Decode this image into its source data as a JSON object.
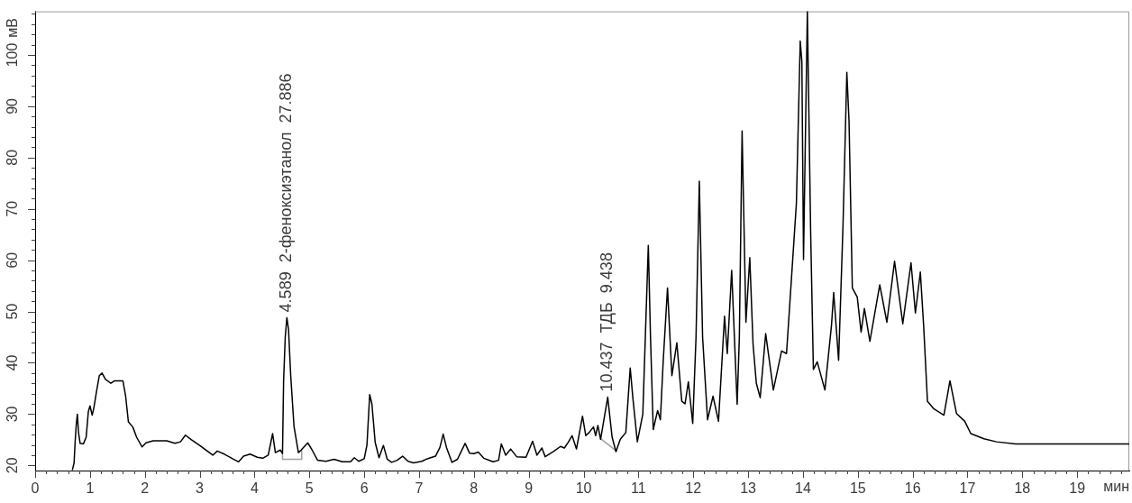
{
  "chart_data": {
    "type": "line",
    "xlabel": "мин",
    "ylabel": "мВ",
    "marker": "none",
    "xlim": [
      0,
      19.95
    ],
    "ylim": [
      19,
      108.5
    ],
    "xticks": [
      0,
      {
        "value": 0.2,
        "label": null
      },
      {
        "value": 0.4,
        "label": null
      },
      {
        "value": 0.6,
        "label": null
      },
      {
        "value": 0.8,
        "label": null
      },
      1,
      {
        "value": 1.2,
        "label": null
      },
      {
        "value": 1.4,
        "label": null
      },
      {
        "value": 1.6,
        "label": null
      },
      {
        "value": 1.8,
        "label": null
      },
      2,
      {
        "value": 2.2,
        "label": null
      },
      {
        "value": 2.4,
        "label": null
      },
      {
        "value": 2.6,
        "label": null
      },
      {
        "value": 2.8,
        "label": null
      },
      3,
      {
        "value": 3.2,
        "label": null
      },
      {
        "value": 3.4,
        "label": null
      },
      {
        "value": 3.6,
        "label": null
      },
      {
        "value": 3.8,
        "label": null
      },
      4,
      {
        "value": 4.2,
        "label": null
      },
      {
        "value": 4.4,
        "label": null
      },
      {
        "value": 4.6,
        "label": null
      },
      {
        "value": 4.8,
        "label": null
      },
      5,
      {
        "value": 5.2,
        "label": null
      },
      {
        "value": 5.4,
        "label": null
      },
      {
        "value": 5.6,
        "label": null
      },
      {
        "value": 5.8,
        "label": null
      },
      6,
      {
        "value": 6.2,
        "label": null
      },
      {
        "value": 6.4,
        "label": null
      },
      {
        "value": 6.6,
        "label": null
      },
      {
        "value": 6.8,
        "label": null
      },
      7,
      {
        "value": 7.2,
        "label": null
      },
      {
        "value": 7.4,
        "label": null
      },
      {
        "value": 7.6,
        "label": null
      },
      {
        "value": 7.8,
        "label": null
      },
      8,
      {
        "value": 8.2,
        "label": null
      },
      {
        "value": 8.4,
        "label": null
      },
      {
        "value": 8.6,
        "label": null
      },
      {
        "value": 8.8,
        "label": null
      },
      9,
      {
        "value": 9.2,
        "label": null
      },
      {
        "value": 9.4,
        "label": null
      },
      {
        "value": 9.6,
        "label": null
      },
      {
        "value": 9.8,
        "label": null
      },
      10,
      {
        "value": 10.2,
        "label": null
      },
      {
        "value": 10.4,
        "label": null
      },
      {
        "value": 10.6,
        "label": null
      },
      {
        "value": 10.8,
        "label": null
      },
      11,
      {
        "value": 11.2,
        "label": null
      },
      {
        "value": 11.4,
        "label": null
      },
      {
        "value": 11.6,
        "label": null
      },
      {
        "value": 11.8,
        "label": null
      },
      12,
      {
        "value": 12.2,
        "label": null
      },
      {
        "value": 12.4,
        "label": null
      },
      {
        "value": 12.6,
        "label": null
      },
      {
        "value": 12.8,
        "label": null
      },
      13,
      {
        "value": 13.2,
        "label": null
      },
      {
        "value": 13.4,
        "label": null
      },
      {
        "value": 13.6,
        "label": null
      },
      {
        "value": 13.8,
        "label": null
      },
      14,
      {
        "value": 14.2,
        "label": null
      },
      {
        "value": 14.4,
        "label": null
      },
      {
        "value": 14.6,
        "label": null
      },
      {
        "value": 14.8,
        "label": null
      },
      15,
      {
        "value": 15.2,
        "label": null
      },
      {
        "value": 15.4,
        "label": null
      },
      {
        "value": 15.6,
        "label": null
      },
      {
        "value": 15.8,
        "label": null
      },
      16,
      {
        "value": 16.2,
        "label": null
      },
      {
        "value": 16.4,
        "label": null
      },
      {
        "value": 16.6,
        "label": null
      },
      {
        "value": 16.8,
        "label": null
      },
      17,
      {
        "value": 17.2,
        "label": null
      },
      {
        "value": 17.4,
        "label": null
      },
      {
        "value": 17.6,
        "label": null
      },
      {
        "value": 17.8,
        "label": null
      },
      18,
      {
        "value": 18.2,
        "label": null
      },
      {
        "value": 18.4,
        "label": null
      },
      {
        "value": 18.6,
        "label": null
      },
      {
        "value": 18.8,
        "label": null
      },
      19,
      {
        "value": 19.2,
        "label": null
      },
      {
        "value": 19.4,
        "label": null
      },
      {
        "value": 19.6,
        "label": null
      },
      {
        "value": 19.8,
        "label": null
      }
    ],
    "yticks": [
      20,
      {
        "value": 22,
        "label": null
      },
      {
        "value": 24,
        "label": null
      },
      {
        "value": 26,
        "label": null
      },
      {
        "value": 28,
        "label": null
      },
      30,
      {
        "value": 32,
        "label": null
      },
      {
        "value": 34,
        "label": null
      },
      {
        "value": 36,
        "label": null
      },
      {
        "value": 38,
        "label": null
      },
      40,
      {
        "value": 42,
        "label": null
      },
      {
        "value": 44,
        "label": null
      },
      {
        "value": 46,
        "label": null
      },
      {
        "value": 48,
        "label": null
      },
      50,
      {
        "value": 52,
        "label": null
      },
      {
        "value": 54,
        "label": null
      },
      {
        "value": 56,
        "label": null
      },
      {
        "value": 58,
        "label": null
      },
      60,
      {
        "value": 62,
        "label": null
      },
      {
        "value": 64,
        "label": null
      },
      {
        "value": 66,
        "label": null
      },
      {
        "value": 68,
        "label": null
      },
      70,
      {
        "value": 72,
        "label": null
      },
      {
        "value": 74,
        "label": null
      },
      {
        "value": 76,
        "label": null
      },
      {
        "value": 78,
        "label": null
      },
      80,
      {
        "value": 82,
        "label": null
      },
      {
        "value": 84,
        "label": null
      },
      {
        "value": 86,
        "label": null
      },
      {
        "value": 88,
        "label": null
      },
      90,
      {
        "value": 92,
        "label": null
      },
      {
        "value": 94,
        "label": null
      },
      {
        "value": 96,
        "label": null
      },
      {
        "value": 98,
        "label": null
      },
      100,
      {
        "value": 102,
        "label": null
      },
      {
        "value": 104,
        "label": null
      },
      {
        "value": 106,
        "label": null
      },
      {
        "value": 108,
        "label": null
      }
    ],
    "series": [
      {
        "color": "#000000",
        "x": [
          0.68,
          0.71,
          0.73,
          0.75,
          0.77,
          0.79,
          0.82,
          0.88,
          0.93,
          0.97,
          1.0,
          1.04,
          1.07,
          1.12,
          1.17,
          1.22,
          1.28,
          1.38,
          1.45,
          1.6,
          1.65,
          1.7,
          1.78,
          1.85,
          1.95,
          2.02,
          2.15,
          2.4,
          2.55,
          2.65,
          2.74,
          2.85,
          3.0,
          3.15,
          3.24,
          3.32,
          3.45,
          3.6,
          3.71,
          3.8,
          3.92,
          4.05,
          4.15,
          4.25,
          4.33,
          4.38,
          4.47,
          4.51,
          4.53,
          4.56,
          4.59,
          4.62,
          4.66,
          4.72,
          4.8,
          4.85,
          4.97,
          5.05,
          5.15,
          5.3,
          5.45,
          5.6,
          5.75,
          5.82,
          5.9,
          6.0,
          6.05,
          6.1,
          6.14,
          6.2,
          6.27,
          6.35,
          6.42,
          6.5,
          6.6,
          6.7,
          6.8,
          6.9,
          7.05,
          7.15,
          7.3,
          7.38,
          7.44,
          7.5,
          7.6,
          7.7,
          7.84,
          7.92,
          8.0,
          8.08,
          8.18,
          8.35,
          8.45,
          8.5,
          8.58,
          8.67,
          8.78,
          8.95,
          9.07,
          9.15,
          9.24,
          9.3,
          9.45,
          9.58,
          9.65,
          9.72,
          9.79,
          9.87,
          9.98,
          10.04,
          10.1,
          10.18,
          10.22,
          10.26,
          10.31,
          10.44,
          10.52,
          10.59,
          10.67,
          10.77,
          10.85,
          10.9,
          10.98,
          11.08,
          11.18,
          11.22,
          11.27,
          11.35,
          11.4,
          11.45,
          11.53,
          11.61,
          11.7,
          11.79,
          11.85,
          11.91,
          11.99,
          12.05,
          12.11,
          12.17,
          12.26,
          12.36,
          12.46,
          12.57,
          12.62,
          12.7,
          12.8,
          12.84,
          12.89,
          12.96,
          13.03,
          13.09,
          13.15,
          13.22,
          13.32,
          13.46,
          13.61,
          13.7,
          13.79,
          13.88,
          13.95,
          13.98,
          14.01,
          14.04,
          14.08,
          14.14,
          14.19,
          14.26,
          14.4,
          14.52,
          14.56,
          14.65,
          14.73,
          14.8,
          14.84,
          14.9,
          14.99,
          15.06,
          15.12,
          15.22,
          15.4,
          15.53,
          15.67,
          15.82,
          15.97,
          16.05,
          16.14,
          16.2,
          16.27,
          16.39,
          16.57,
          16.68,
          16.8,
          16.95,
          17.06,
          17.3,
          17.53,
          17.88,
          19.95
        ],
        "values": [
          19.2,
          20.5,
          24.8,
          28,
          30,
          26.5,
          24.3,
          24.2,
          25.5,
          30.5,
          31.6,
          29.8,
          31.2,
          34.5,
          37.5,
          38,
          36.8,
          36,
          36.5,
          36.5,
          33.5,
          28.5,
          27.5,
          25.5,
          23.6,
          24.4,
          24.8,
          24.8,
          24.3,
          24.6,
          25.9,
          25,
          23.9,
          22.7,
          22,
          22.8,
          22.2,
          21.3,
          20.7,
          21.8,
          22.2,
          21.6,
          21.4,
          22,
          26.2,
          22.5,
          23,
          22.3,
          36.5,
          45,
          48.8,
          46.5,
          37.5,
          27.6,
          22.5,
          23,
          24.4,
          23,
          21,
          20.8,
          21.2,
          20.7,
          20.7,
          21.5,
          20.8,
          21.3,
          24,
          33.8,
          32,
          24.5,
          21.5,
          23.9,
          21.2,
          20.6,
          21,
          21.8,
          20.8,
          20.5,
          20.8,
          21.3,
          21.8,
          23.5,
          26.1,
          23.5,
          20.6,
          21.2,
          24.3,
          22.4,
          22.3,
          22.6,
          21.4,
          20.7,
          21,
          24.2,
          22,
          23.2,
          21.7,
          21.6,
          24.7,
          22,
          23.4,
          21.7,
          22.7,
          23.7,
          23.4,
          24.5,
          25.8,
          23.2,
          29.6,
          25.8,
          26.4,
          27.5,
          25.8,
          27.8,
          25.1,
          33.3,
          25.5,
          22.7,
          25.1,
          26.4,
          39,
          33,
          24.6,
          30,
          62.9,
          45,
          27,
          30.7,
          28.9,
          40,
          54.6,
          37.5,
          43.9,
          32.5,
          32,
          36.3,
          28.2,
          45,
          75.4,
          45,
          28.9,
          33.5,
          28.6,
          49.1,
          41.8,
          58,
          31.9,
          45,
          85.2,
          47.9,
          60.5,
          43.6,
          36,
          33.2,
          45.7,
          34.7,
          42.3,
          41.8,
          56.4,
          71.1,
          102.7,
          98.7,
          60.1,
          81,
          108.5,
          65.6,
          38.7,
          40.2,
          34.7,
          47.3,
          53.7,
          40.5,
          66.8,
          96.6,
          87.1,
          54.6,
          52.8,
          46,
          50.6,
          44.2,
          55.2,
          47.9,
          59.8,
          47.6,
          59.5,
          49.7,
          57.7,
          47.3,
          32.5,
          31,
          29.8,
          36.5,
          30.1,
          28.6,
          26.2,
          25.2,
          24.6,
          24.2,
          24.2
        ]
      },
      {
        "color": "#a0a0a0",
        "x": [
          4.51,
          4.51,
          4.86,
          4.86
        ],
        "values": [
          22.3,
          21.2,
          21.2,
          23
        ]
      },
      {
        "color": "#a0a0a0",
        "x": [
          10.31,
          10.6
        ],
        "values": [
          25.2,
          22.8
        ]
      }
    ],
    "annotations": [
      {
        "text": "4.589  2-феноксиэтанол  27.886",
        "x": 4.589,
        "y": 48.8
      },
      {
        "text": "10.437  ТДБ  9.438",
        "x": 10.437,
        "y": 33.3
      }
    ]
  }
}
